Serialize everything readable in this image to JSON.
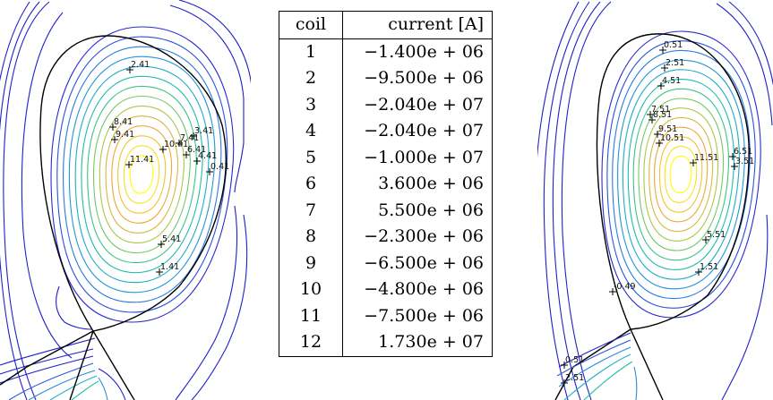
{
  "table": {
    "headers": {
      "coil": "coil",
      "current": "current [A]"
    },
    "rows": [
      {
        "coil": "1",
        "current": "−1.400e + 06"
      },
      {
        "coil": "2",
        "current": "−9.500e + 06"
      },
      {
        "coil": "3",
        "current": "−2.040e + 07"
      },
      {
        "coil": "4",
        "current": "−2.040e + 07"
      },
      {
        "coil": "5",
        "current": "−1.000e + 07"
      },
      {
        "coil": "6",
        "current": "3.600e + 06"
      },
      {
        "coil": "7",
        "current": "5.500e + 06"
      },
      {
        "coil": "8",
        "current": "−2.300e + 06"
      },
      {
        "coil": "9",
        "current": "−6.500e + 06"
      },
      {
        "coil": "10",
        "current": "−4.800e + 06"
      },
      {
        "coil": "11",
        "current": "−7.500e + 06"
      },
      {
        "coil": "12",
        "current": "1.730e + 07"
      }
    ]
  },
  "left_plot": {
    "labels": [
      "2.41",
      "8.41",
      "9.41",
      "10.41",
      "7.41",
      "3.41",
      "6.41",
      "4.41",
      "11.41",
      "0.41",
      "5.41",
      "1.41"
    ]
  },
  "right_plot": {
    "labels": [
      "0.51",
      "2.51",
      "4.51",
      "7.51",
      "8.51",
      "9.51",
      "10.51",
      "11.51",
      "6.51",
      "3.51",
      "5.51",
      "1.51",
      "-0.49",
      "0.51",
      "2.51"
    ]
  },
  "colors": {
    "contour_outer": "#2020c8",
    "separatrix": "#000000",
    "core": "#ffff00"
  }
}
